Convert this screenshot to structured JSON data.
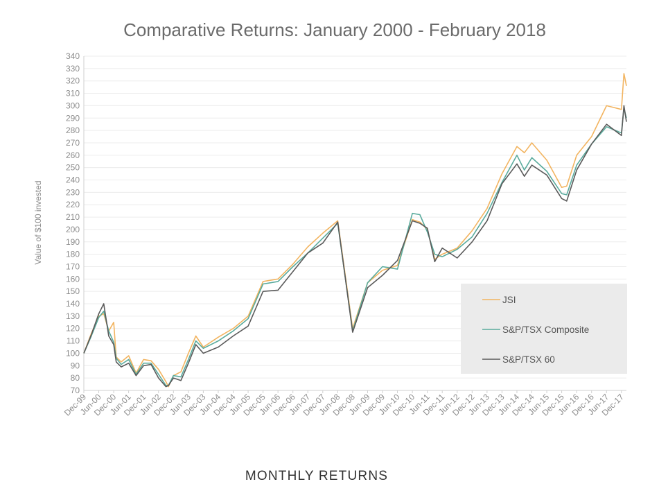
{
  "caption": "MONTHLY RETURNS",
  "chart_data": {
    "type": "line",
    "title": "Comparative Returns: January 2000 - February 2018",
    "xlabel": "",
    "ylabel": "Value of $100 invested",
    "ylim": [
      70,
      340
    ],
    "ystep": 10,
    "grid": true,
    "legend_position": "bottom-right",
    "x_tick_labels": [
      "Dec-99",
      "Jun-00",
      "Dec-00",
      "Jun-01",
      "Dec-01",
      "Jun-02",
      "Dec-02",
      "Jun-03",
      "Dec-03",
      "Jun-04",
      "Dec-04",
      "Jun-05",
      "Dec-05",
      "Jun-06",
      "Dec-06",
      "Jun-07",
      "Dec-07",
      "Jun-08",
      "Dec-08",
      "Jun-09",
      "Dec-09",
      "Jun-10",
      "Dec-10",
      "Jun-11",
      "Dec-11",
      "Jun-12",
      "Dec-12",
      "Jun-13",
      "Dec-13",
      "Jun-14",
      "Dec-14",
      "Jun-15",
      "Dec-15",
      "Jun-16",
      "Dec-16",
      "Jun-17",
      "Dec-17"
    ],
    "x_anchors": [
      "Dec-99",
      "Mar-00",
      "Jun-00",
      "Aug-00",
      "Oct-00",
      "Dec-00",
      "Jan-01",
      "Mar-01",
      "Jun-01",
      "Sep-01",
      "Dec-01",
      "Mar-02",
      "Jun-02",
      "Sep-02",
      "Oct-02",
      "Dec-02",
      "Mar-03",
      "Jun-03",
      "Sep-03",
      "Dec-03",
      "Jun-04",
      "Dec-04",
      "Jun-05",
      "Dec-05",
      "Jun-06",
      "Dec-06",
      "Jun-07",
      "Dec-07",
      "Jun-08",
      "Dec-08",
      "Jun-09",
      "Dec-09",
      "Jun-10",
      "Dec-10",
      "Mar-11",
      "Jun-11",
      "Sep-11",
      "Dec-11",
      "Jun-12",
      "Dec-12",
      "Jun-13",
      "Dec-13",
      "Jun-14",
      "Sep-14",
      "Dec-14",
      "Jun-15",
      "Dec-15",
      "Feb-16",
      "Jun-16",
      "Dec-16",
      "Jun-17",
      "Dec-17",
      "Jan-18",
      "Feb-18"
    ],
    "series": [
      {
        "name": "JSI",
        "color": "#f2b460",
        "values": [
          100,
          116,
          130,
          132,
          118,
          125,
          97,
          93,
          98,
          84,
          95,
          94,
          87,
          77,
          73,
          82,
          85,
          100,
          114,
          105,
          113,
          120,
          130,
          158,
          160,
          172,
          186,
          197,
          207,
          120,
          157,
          167,
          171,
          208,
          206,
          200,
          176,
          180,
          185,
          199,
          217,
          245,
          267,
          262,
          270,
          256,
          234,
          235,
          260,
          275,
          300,
          297,
          326,
          316
        ]
      },
      {
        "name": "S&P/TSX Composite",
        "color": "#5aab9d",
        "values": [
          100,
          114,
          129,
          134,
          118,
          109,
          96,
          91,
          95,
          83,
          92,
          92,
          83,
          74,
          74,
          82,
          81,
          95,
          110,
          104,
          110,
          118,
          128,
          156,
          158,
          170,
          181,
          193,
          205,
          118,
          157,
          170,
          168,
          213,
          212,
          198,
          180,
          178,
          184,
          194,
          213,
          238,
          260,
          248,
          258,
          247,
          229,
          228,
          252,
          269,
          283,
          278,
          298,
          290
        ]
      },
      {
        "name": "S&P/TSX 60",
        "color": "#5a5a5a",
        "values": [
          100,
          115,
          132,
          140,
          114,
          107,
          93,
          89,
          92,
          82,
          90,
          91,
          80,
          73,
          74,
          80,
          78,
          92,
          107,
          100,
          105,
          114,
          122,
          150,
          151,
          166,
          181,
          189,
          206,
          117,
          153,
          163,
          175,
          207,
          205,
          201,
          174,
          185,
          177,
          190,
          207,
          237,
          253,
          243,
          252,
          244,
          225,
          223,
          248,
          269,
          285,
          276,
          300,
          287
        ]
      }
    ]
  }
}
